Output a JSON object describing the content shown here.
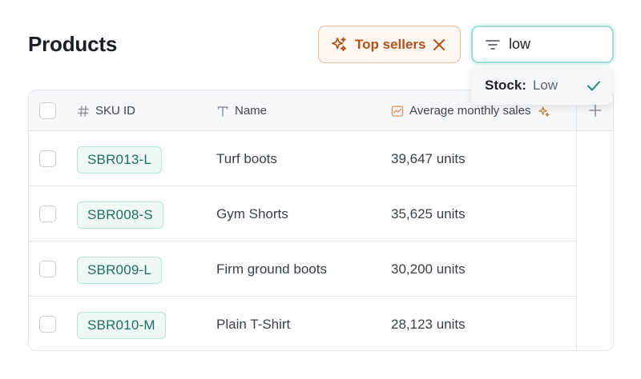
{
  "header": {
    "title": "Products"
  },
  "chips": {
    "top_sellers": {
      "label": "Top sellers",
      "color": "#b5501b"
    }
  },
  "filter": {
    "value": "low",
    "placeholder": ""
  },
  "dropdown": {
    "key": "Stock:",
    "value": "Low"
  },
  "table": {
    "columns": [
      {
        "label": "SKU ID",
        "icon": "hash-icon"
      },
      {
        "label": "Name",
        "icon": "text-icon"
      },
      {
        "label": "Average monthly sales",
        "icon": "chart-icon"
      }
    ],
    "rows": [
      {
        "sku": "SBR013-L",
        "name": "Turf boots",
        "sales": "39,647 units"
      },
      {
        "sku": "SBR008-S",
        "name": "Gym Shorts",
        "sales": "35,625 units"
      },
      {
        "sku": "SBR009-L",
        "name": "Firm ground boots",
        "sales": "30,200 units"
      },
      {
        "sku": "SBR010-M",
        "name": "Plain T-Shirt",
        "sales": "28,123 units"
      }
    ]
  },
  "colors": {
    "accent_teal": "#1f6e62",
    "accent_orange": "#b5501b"
  }
}
